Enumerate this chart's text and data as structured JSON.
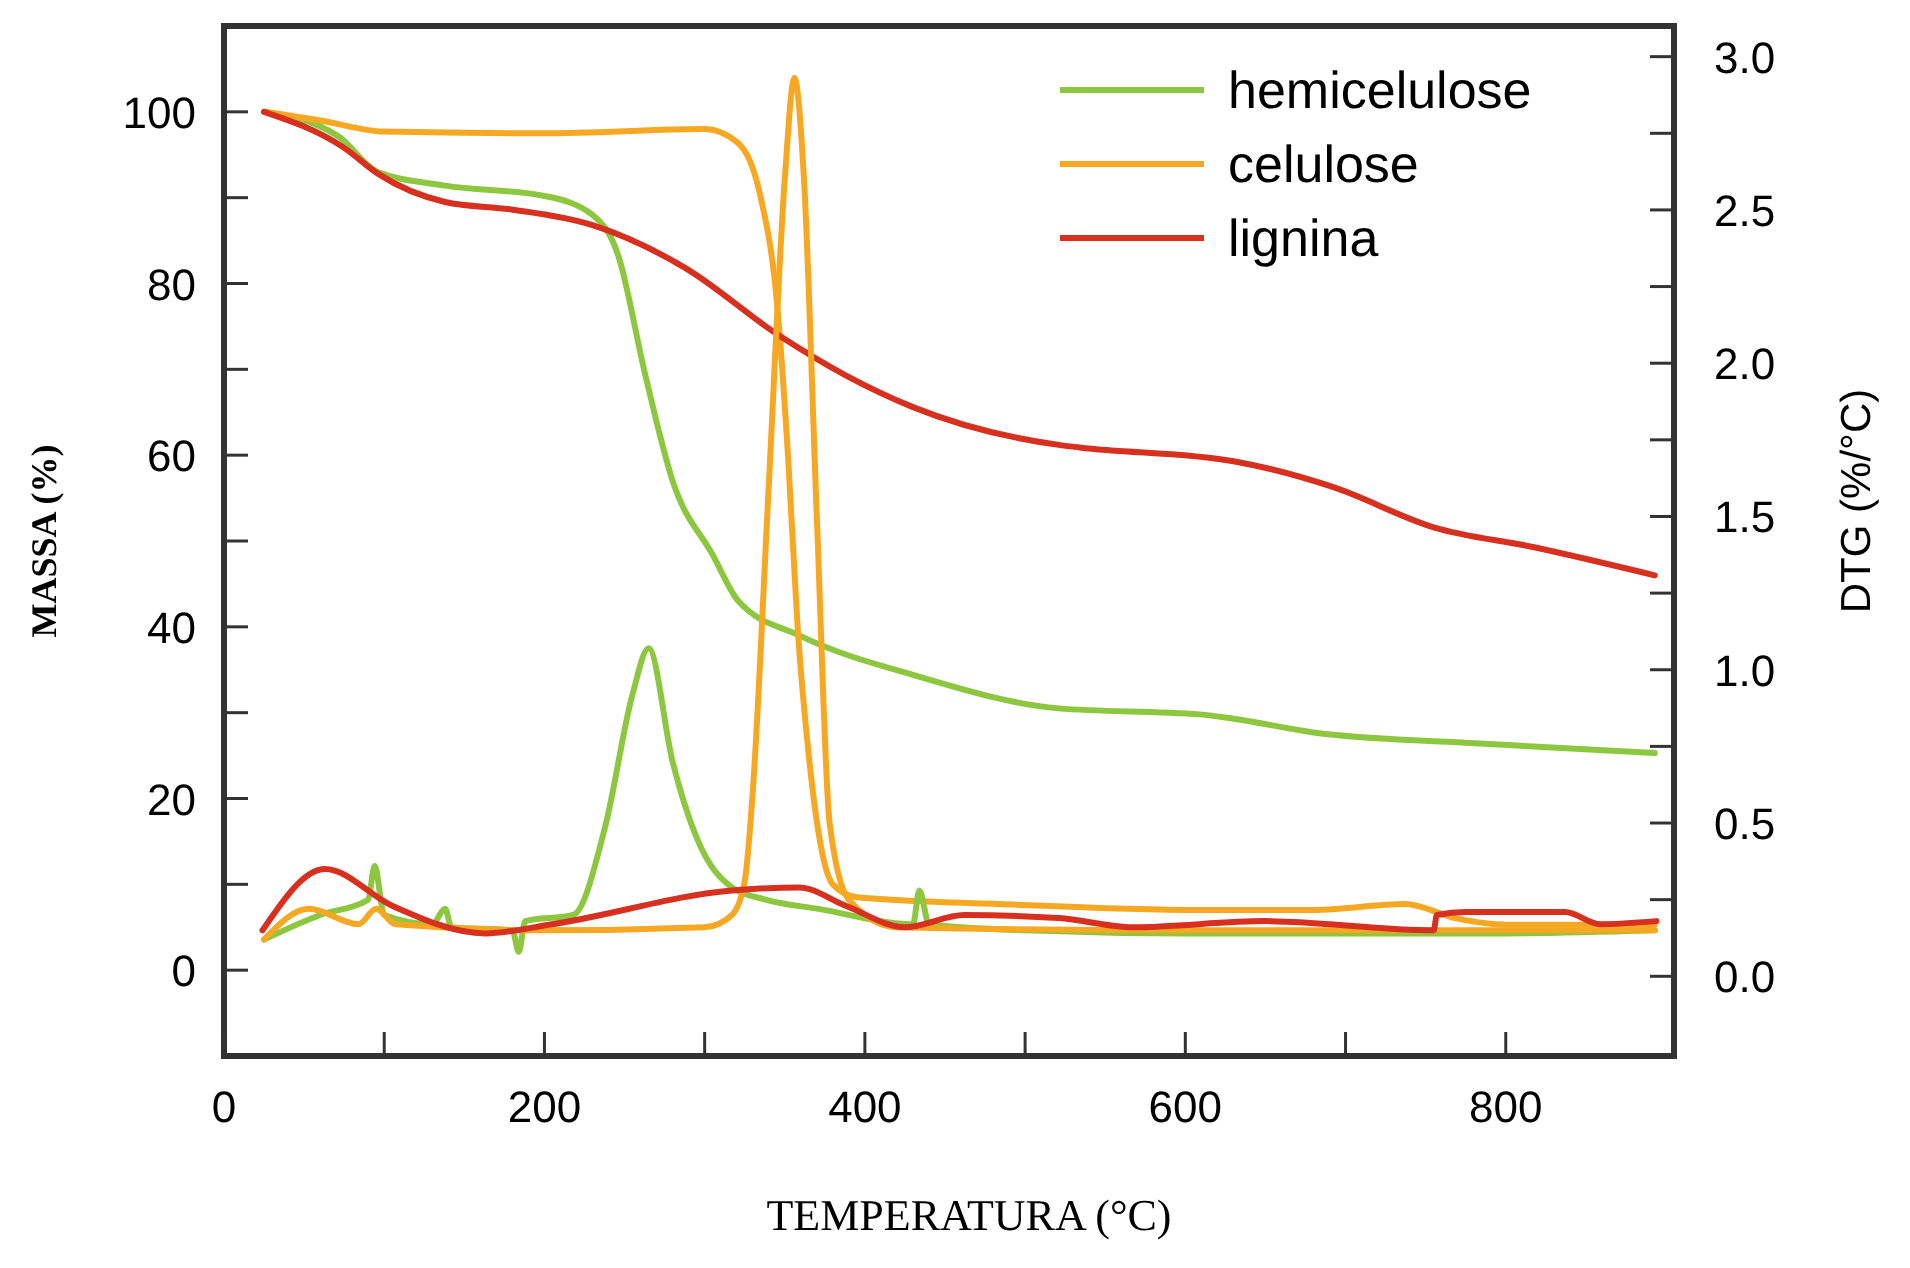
{
  "chart_data": {
    "type": "line",
    "xlabel": "TEMPERATURA (°C)",
    "ylabel": "MASSA (%)",
    "y2label": "DTG (%/°C)",
    "xlim": [
      0,
      905
    ],
    "xticks": [
      0,
      {
        "value": 100,
        "label": null
      },
      200,
      {
        "value": 300,
        "label": null
      },
      400,
      {
        "value": 500,
        "label": null
      },
      600,
      {
        "value": 700,
        "label": null
      },
      800
    ],
    "ylim": [
      -10,
      110
    ],
    "yticks": [
      0,
      {
        "value": 10,
        "label": null
      },
      20,
      {
        "value": 30,
        "label": null
      },
      40,
      {
        "value": 50,
        "label": null
      },
      60,
      {
        "value": 70,
        "label": null
      },
      80,
      {
        "value": 90,
        "label": null
      },
      100
    ],
    "y2lim": [
      -0.26,
      3.1
    ],
    "y2ticks": [
      {
        "value": 0,
        "label": "0.0"
      },
      {
        "value": 0.25,
        "label": null
      },
      0.5,
      {
        "value": 0.75,
        "label": null
      },
      {
        "value": 1,
        "label": "1.0"
      },
      {
        "value": 1.25,
        "label": null
      },
      1.5,
      {
        "value": 1.75,
        "label": null
      },
      {
        "value": 2,
        "label": "2.0"
      },
      {
        "value": 2.25,
        "label": null
      },
      2.5,
      {
        "value": 2.75,
        "label": null
      },
      {
        "value": 3,
        "label": "3.0"
      }
    ],
    "grid": false,
    "legend": "top right",
    "line_style": "solid",
    "series": [
      {
        "name": "hemicelulose",
        "color": "#8dc63f",
        "x": [
          25,
          71,
          96,
          138,
          200,
          230,
          246,
          263,
          280,
          305,
          321,
          359,
          430,
          521,
          609,
          630,
          680,
          775,
          893
        ],
        "values": [
          100,
          97.2,
          93,
          91.4,
          90.2,
          88,
          83.3,
          69.3,
          57,
          48.4,
          43,
          39,
          34.4,
          30.5,
          29.8,
          29.3,
          27.7,
          26.5,
          25.3
        ]
      },
      {
        "name": "celulose",
        "color": "#f7a823",
        "x": [
          25,
          60,
          100,
          200,
          300,
          320,
          335,
          345,
          352,
          358,
          365,
          372,
          380,
          395,
          484,
          609,
          680,
          737,
          770,
          800,
          893
        ],
        "values": [
          100,
          99,
          97.7,
          97.5,
          98,
          96.5,
          90,
          78,
          60,
          40,
          25,
          15,
          10,
          8.5,
          7.7,
          7,
          7,
          7.7,
          6,
          5.3,
          5.3
        ]
      },
      {
        "name": "lignina",
        "color": "#d7301f",
        "x": [
          25,
          75,
          96,
          138,
          180,
          230,
          288,
          346,
          388,
          430,
          521,
          534,
          630,
          692,
          755,
          817,
          893
        ],
        "values": [
          100,
          95.8,
          92.8,
          89.5,
          88.6,
          86.8,
          81.8,
          74,
          69.3,
          65.6,
          61.2,
          60.9,
          59.3,
          56.3,
          51.6,
          49.3,
          46
        ]
      },
      {
        "axis": "y2",
        "color": "#8dc63f",
        "x": [
          25,
          60,
          90,
          94,
          100,
          130,
          138,
          142,
          180,
          184,
          188,
          218,
          238,
          255,
          265,
          280,
          296,
          317,
          338,
          371,
          430,
          434,
          440,
          500,
          600,
          700,
          800,
          893
        ],
        "values": [
          0.12,
          0.2,
          0.25,
          0.36,
          0.2,
          0.17,
          0.22,
          0.16,
          0.15,
          0.08,
          0.18,
          0.2,
          0.49,
          0.92,
          1.07,
          0.7,
          0.44,
          0.29,
          0.25,
          0.22,
          0.17,
          0.28,
          0.17,
          0.15,
          0.14,
          0.14,
          0.14,
          0.15
        ]
      },
      {
        "axis": "y2",
        "color": "#f7a823",
        "x": [
          25,
          53,
          84,
          95,
          107,
          200,
          300,
          317,
          325,
          330,
          340,
          350,
          356,
          362,
          370,
          378,
          390,
          420,
          600,
          800,
          893
        ],
        "values": [
          0.12,
          0.22,
          0.17,
          0.22,
          0.17,
          0.15,
          0.16,
          0.2,
          0.31,
          0.6,
          1.6,
          2.6,
          2.93,
          2.6,
          1.5,
          0.5,
          0.25,
          0.16,
          0.15,
          0.15,
          0.15
        ]
      },
      {
        "axis": "y2",
        "color": "#d7301f",
        "x": [
          24,
          63,
          105,
          163,
          205,
          317,
          359,
          388,
          425,
          462,
          521,
          567,
          650,
          755,
          757,
          775,
          837,
          859,
          894
        ],
        "values": [
          0.15,
          0.35,
          0.23,
          0.14,
          0.17,
          0.28,
          0.29,
          0.23,
          0.16,
          0.2,
          0.19,
          0.16,
          0.18,
          0.15,
          0.2,
          0.21,
          0.21,
          0.17,
          0.18
        ]
      }
    ]
  }
}
